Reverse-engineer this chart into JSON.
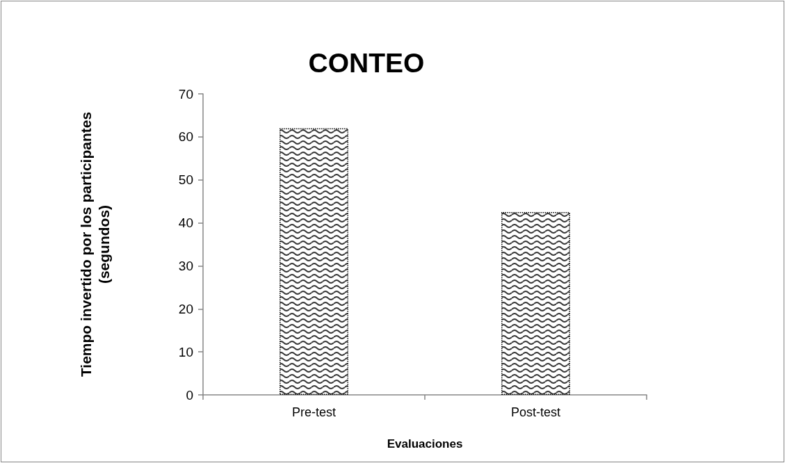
{
  "chart_data": {
    "type": "bar",
    "title": "CONTEO",
    "xlabel": "Evaluaciones",
    "ylabel": "Tiempo invertido por los participantes (segundos)",
    "categories": [
      "Pre-test",
      "Post-test"
    ],
    "values": [
      62,
      42.5
    ],
    "color": "#000000",
    "ylim": [
      0,
      70
    ],
    "yticks": [
      0,
      10,
      20,
      30,
      40,
      50,
      60,
      70
    ],
    "grid": false
  }
}
